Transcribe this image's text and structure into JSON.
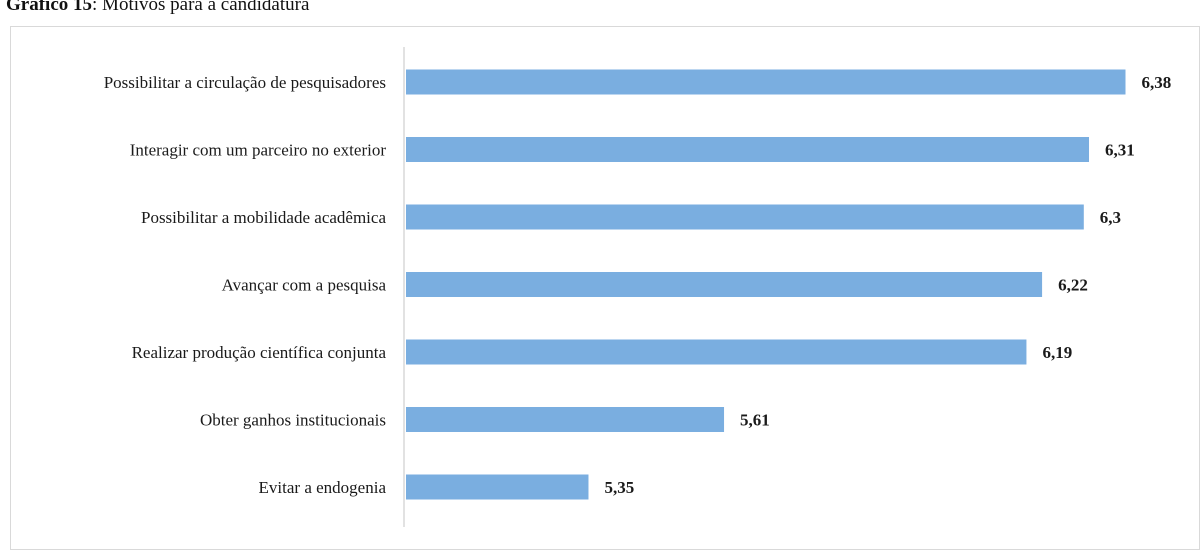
{
  "caption": {
    "number": "Gráfico 15",
    "text": ": Motivos para a candidatura"
  },
  "colors": {
    "bar": "#7aaee0",
    "axis": "#d9d9d9"
  },
  "chart_data": {
    "type": "bar",
    "orientation": "horizontal",
    "title": "",
    "xlabel": "",
    "ylabel": "",
    "grid": false,
    "legend": "none",
    "xlim": [
      5,
      6.45
    ],
    "categories": [
      "Possibilitar a circulação de pesquisadores",
      "Interagir com um parceiro no exterior",
      "Possibilitar a mobilidade acadêmica",
      "Avançar com a pesquisa",
      "Realizar produção científica conjunta",
      "Obter ganhos institucionais",
      "Evitar a endogenia"
    ],
    "values": [
      6.38,
      6.31,
      6.3,
      6.22,
      6.19,
      5.61,
      5.35
    ],
    "value_labels": [
      "6,38",
      "6,31",
      "6,3",
      "6,22",
      "6,19",
      "5,61",
      "5,35"
    ]
  }
}
